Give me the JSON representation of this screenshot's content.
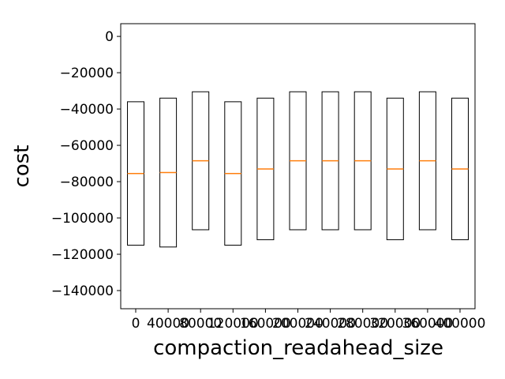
{
  "chart_data": {
    "type": "box",
    "title": "",
    "xlabel": "compaction_readahead_size",
    "ylabel": "cost",
    "categories": [
      "0",
      "40000",
      "80000",
      "120000",
      "160000",
      "200000",
      "240000",
      "280000",
      "320000",
      "360000",
      "400000"
    ],
    "highlighted_category": "40000",
    "highlight_color": "#ff0000",
    "box_color": "#000000",
    "median_color": "#ff7f0e",
    "ylim": [
      -150000,
      7000
    ],
    "yticks": [
      0,
      -20000,
      -40000,
      -60000,
      -80000,
      -100000,
      -120000,
      -140000
    ],
    "ytick_labels": [
      "0",
      "−20000",
      "−40000",
      "−60000",
      "−80000",
      "−100000",
      "−120000",
      "−140000"
    ],
    "boxes": [
      {
        "q1": -115000,
        "median": -75500,
        "q3": -36000
      },
      {
        "q1": -116000,
        "median": -75000,
        "q3": -34000
      },
      {
        "q1": -106500,
        "median": -68500,
        "q3": -30500
      },
      {
        "q1": -115000,
        "median": -75500,
        "q3": -36000
      },
      {
        "q1": -112000,
        "median": -73000,
        "q3": -34000
      },
      {
        "q1": -106500,
        "median": -68500,
        "q3": -30500
      },
      {
        "q1": -106500,
        "median": -68500,
        "q3": -30500
      },
      {
        "q1": -106500,
        "median": -68500,
        "q3": -30500
      },
      {
        "q1": -112000,
        "median": -73000,
        "q3": -34000
      },
      {
        "q1": -106500,
        "median": -68500,
        "q3": -30500
      },
      {
        "q1": -112000,
        "median": -73000,
        "q3": -34000
      }
    ],
    "grid": false,
    "legend": "none"
  }
}
